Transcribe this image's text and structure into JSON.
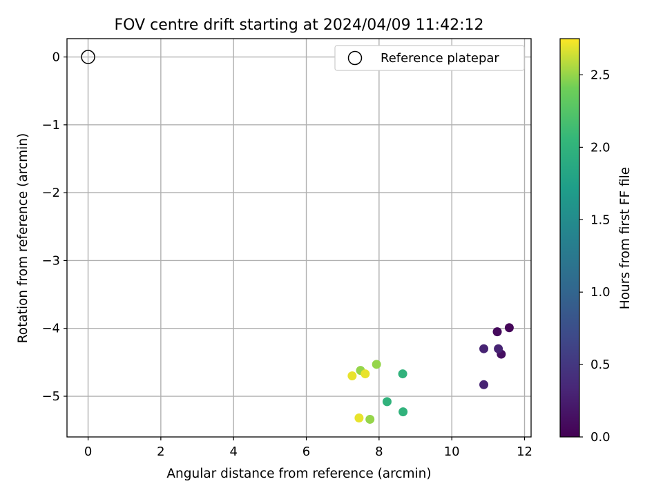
{
  "chart_data": {
    "type": "scatter",
    "title": "FOV centre drift starting at 2024/04/09 11:42:12",
    "xlabel": "Angular distance from reference (arcmin)",
    "ylabel": "Rotation from reference (arcmin)",
    "xlim": [
      -0.58,
      12.18
    ],
    "ylim": [
      -5.6,
      0.27
    ],
    "xticks": [
      0,
      2,
      4,
      6,
      8,
      10,
      12
    ],
    "yticks": [
      0,
      -1,
      -2,
      -3,
      -4,
      -5
    ],
    "xtick_labels": [
      "0",
      "2",
      "4",
      "6",
      "8",
      "10",
      "12"
    ],
    "ytick_labels": [
      "0",
      "−1",
      "−2",
      "−3",
      "−4",
      "−5"
    ],
    "grid": true,
    "legend": {
      "placement": "top-right",
      "entries": [
        "Reference platepar"
      ]
    },
    "reference_point": {
      "x": 0,
      "y": 0,
      "marker": "open-circle"
    },
    "colormap": "viridis",
    "colorbar": {
      "label": "Hours from first FF file",
      "range": [
        0.0,
        2.75
      ],
      "ticks": [
        0.0,
        0.5,
        1.0,
        1.5,
        2.0,
        2.5
      ],
      "tick_labels": [
        "0.0",
        "0.5",
        "1.0",
        "1.5",
        "2.0",
        "2.5"
      ]
    },
    "points": [
      {
        "x": 11.58,
        "y": -3.99,
        "c": 0.05
      },
      {
        "x": 11.25,
        "y": -4.05,
        "c": 0.08
      },
      {
        "x": 11.36,
        "y": -4.38,
        "c": 0.12
      },
      {
        "x": 10.88,
        "y": -4.3,
        "c": 0.3
      },
      {
        "x": 11.28,
        "y": -4.3,
        "c": 0.3
      },
      {
        "x": 10.88,
        "y": -4.83,
        "c": 0.3
      },
      {
        "x": 8.65,
        "y": -4.67,
        "c": 2.0
      },
      {
        "x": 8.22,
        "y": -5.08,
        "c": 2.0
      },
      {
        "x": 8.66,
        "y": -5.23,
        "c": 2.0
      },
      {
        "x": 7.93,
        "y": -4.53,
        "c": 2.5
      },
      {
        "x": 7.49,
        "y": -4.62,
        "c": 2.5
      },
      {
        "x": 7.75,
        "y": -5.34,
        "c": 2.5
      },
      {
        "x": 7.62,
        "y": -4.67,
        "c": 2.7
      },
      {
        "x": 7.26,
        "y": -4.7,
        "c": 2.7
      },
      {
        "x": 7.45,
        "y": -5.32,
        "c": 2.7
      }
    ]
  }
}
